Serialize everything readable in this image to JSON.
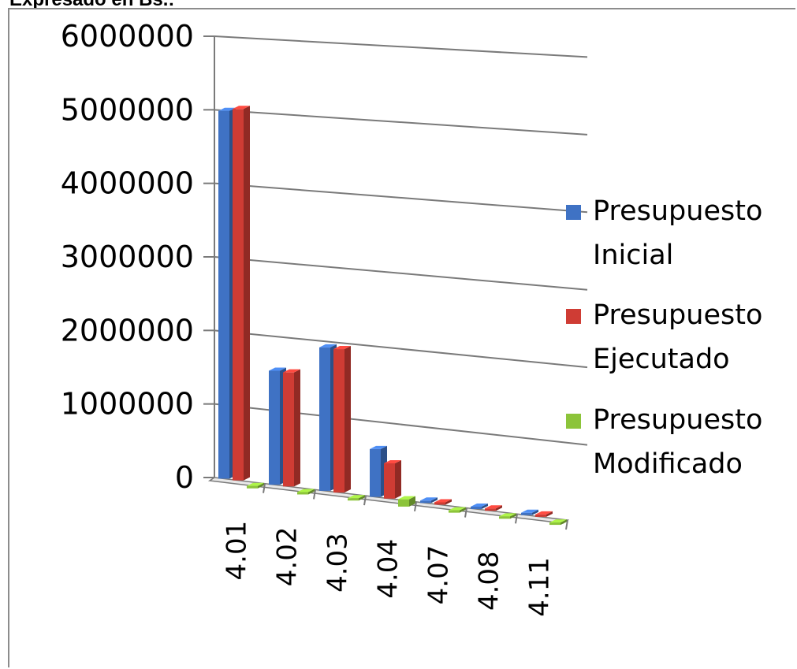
{
  "page_title": "Expresado en Bs.:",
  "colors": {
    "inicial": "#3f72c4",
    "ejecutado": "#cf3c34",
    "modificado": "#8cc43a",
    "grid": "#7a7a7a"
  },
  "chart_data": {
    "type": "bar",
    "title": "",
    "xlabel": "",
    "ylabel": "",
    "ylim": [
      0,
      6000000
    ],
    "yticks": [
      "0",
      "1000000",
      "2000000",
      "3000000",
      "4000000",
      "5000000",
      "6000000"
    ],
    "categories": [
      "4.01",
      "4.02",
      "4.03",
      "4.04",
      "4.07",
      "4.08",
      "4.11"
    ],
    "series": [
      {
        "name": "Presupuesto Inicial",
        "name_lines": [
          "Presupuesto",
          "Inicial"
        ],
        "values": [
          5000000,
          1550000,
          1950000,
          650000,
          20000,
          15000,
          10000
        ]
      },
      {
        "name": "Presupuesto Ejecutado",
        "name_lines": [
          "Presupuesto",
          "Ejecutado"
        ],
        "values": [
          5050000,
          1550000,
          1950000,
          480000,
          20000,
          15000,
          10000
        ]
      },
      {
        "name": "Presupuesto Modificado",
        "name_lines": [
          "Presupuesto",
          "Modificado"
        ],
        "values": [
          0,
          0,
          0,
          100000,
          0,
          0,
          0
        ]
      }
    ],
    "grid": true,
    "legend": "right",
    "style": "3d-column"
  }
}
